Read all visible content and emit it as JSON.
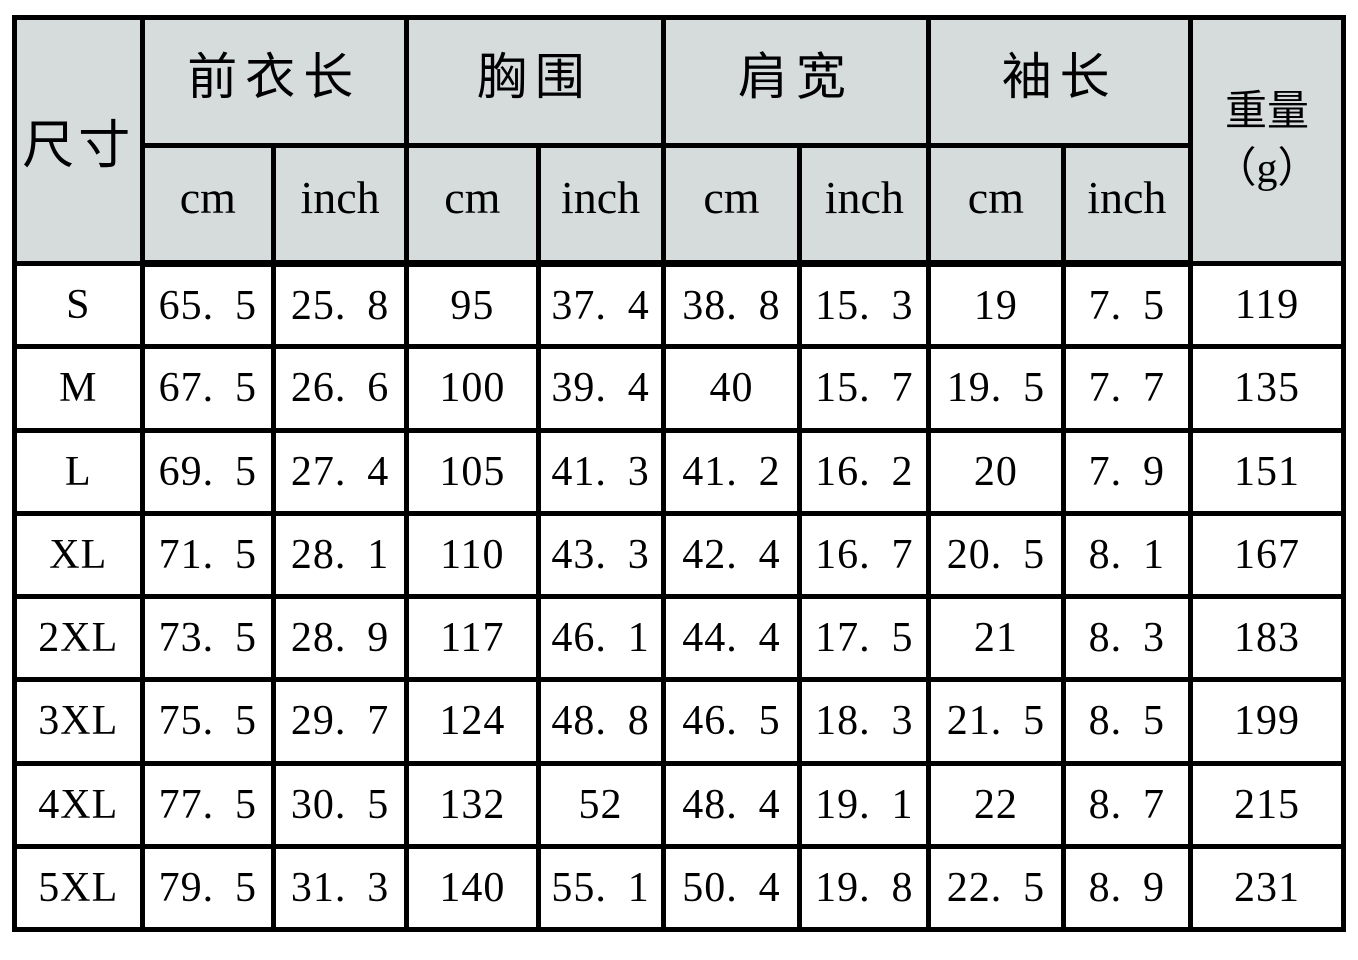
{
  "header": {
    "size_label": "尺寸",
    "groups": [
      {
        "label": "前衣长"
      },
      {
        "label": "胸围"
      },
      {
        "label": "肩宽"
      },
      {
        "label": "袖长"
      }
    ],
    "units": [
      "cm",
      "inch",
      "cm",
      "inch",
      "cm",
      "inch",
      "cm",
      "inch"
    ],
    "weight_lines": [
      "重量",
      "（g）"
    ]
  },
  "colors": {
    "header_bg": "#d5dcdb",
    "border": "#000000",
    "page_bg": "#ffffff",
    "text": "#000000"
  },
  "chart_data": {
    "type": "table",
    "title": "",
    "columns": [
      "尺寸",
      "前衣长 cm",
      "前衣长 inch",
      "胸围 cm",
      "胸围 inch",
      "肩宽 cm",
      "肩宽 inch",
      "袖长 cm",
      "袖长 inch",
      "重量（g）"
    ],
    "rows": [
      [
        "S",
        65.5,
        25.8,
        95,
        37.4,
        38.8,
        15.3,
        19,
        7.5,
        119
      ],
      [
        "M",
        67.5,
        26.6,
        100,
        39.4,
        40,
        15.7,
        19.5,
        7.7,
        135
      ],
      [
        "L",
        69.5,
        27.4,
        105,
        41.3,
        41.2,
        16.2,
        20,
        7.9,
        151
      ],
      [
        "XL",
        71.5,
        28.1,
        110,
        43.3,
        42.4,
        16.7,
        20.5,
        8.1,
        167
      ],
      [
        "2XL",
        73.5,
        28.9,
        117,
        46.1,
        44.4,
        17.5,
        21,
        8.3,
        183
      ],
      [
        "3XL",
        75.5,
        29.7,
        124,
        48.8,
        46.5,
        18.3,
        21.5,
        8.5,
        199
      ],
      [
        "4XL",
        77.5,
        30.5,
        132,
        52,
        48.4,
        19.1,
        22,
        8.7,
        215
      ],
      [
        "5XL",
        79.5,
        31.3,
        140,
        55.1,
        50.4,
        19.8,
        22.5,
        8.9,
        231
      ]
    ]
  }
}
